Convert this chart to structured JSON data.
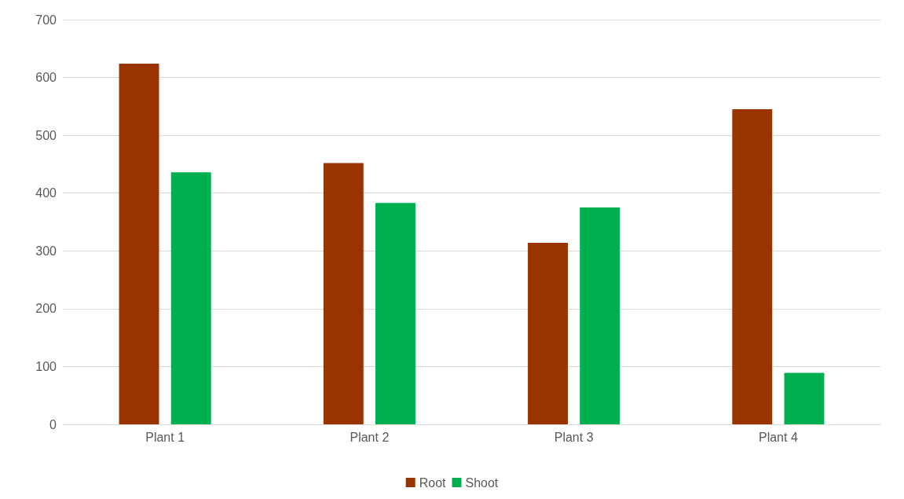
{
  "chart_data": {
    "type": "bar",
    "categories": [
      "Plant 1",
      "Plant 2",
      "Plant 3",
      "Plant 4"
    ],
    "series": [
      {
        "name": "Root",
        "color": "#993300",
        "values": [
          624,
          452,
          314,
          545
        ]
      },
      {
        "name": "Shoot",
        "color": "#00b050",
        "values": [
          436,
          383,
          375,
          89
        ]
      }
    ],
    "ylim": [
      0,
      700
    ],
    "yticks": [
      0,
      100,
      200,
      300,
      400,
      500,
      600,
      700
    ],
    "grid": "y",
    "legend": "bottom"
  }
}
